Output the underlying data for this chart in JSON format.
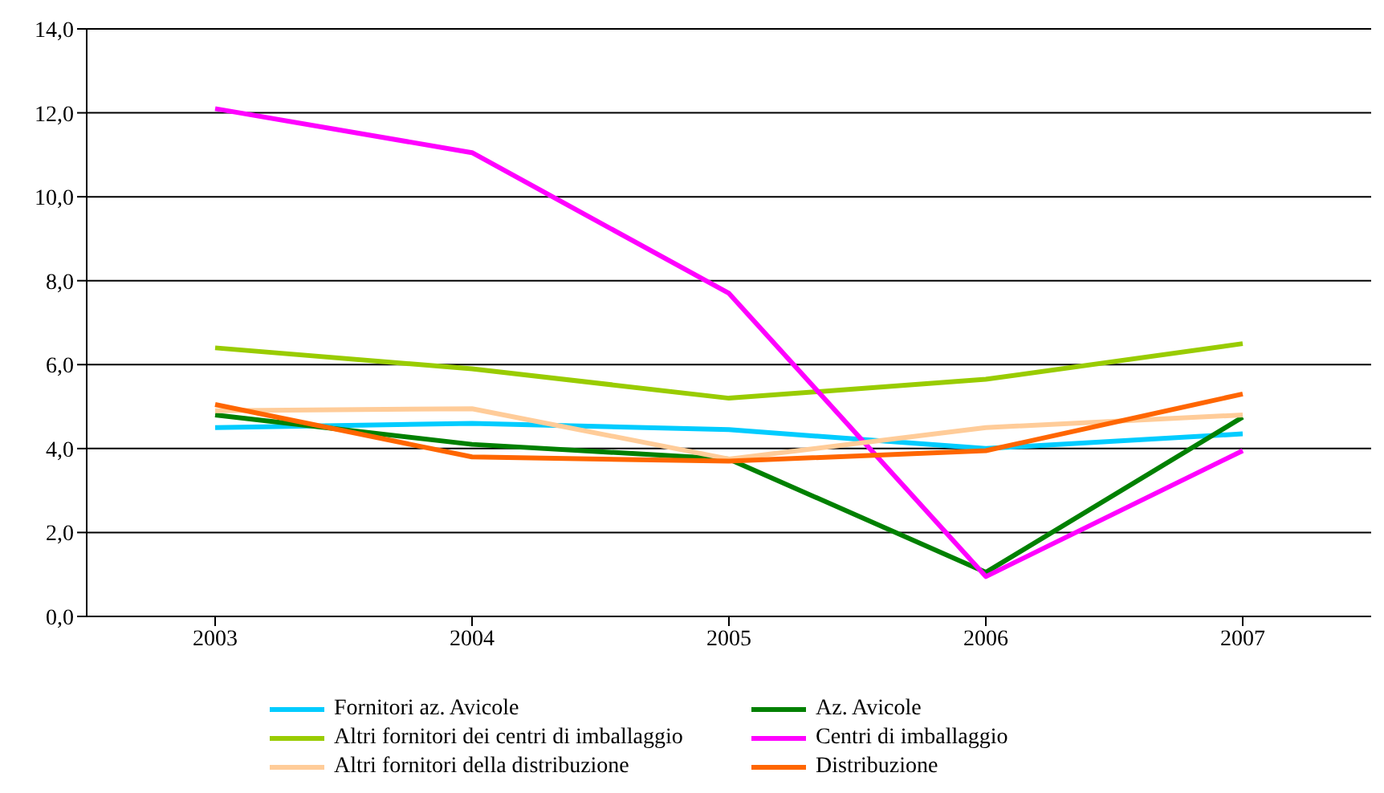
{
  "chart_data": {
    "type": "line",
    "categories": [
      "2003",
      "2004",
      "2005",
      "2006",
      "2007"
    ],
    "ylim": [
      0,
      14
    ],
    "yticks": [
      {
        "value": 0,
        "label": "0,0"
      },
      {
        "value": 2,
        "label": "2,0"
      },
      {
        "value": 4,
        "label": "4,0"
      },
      {
        "value": 6,
        "label": "6,0"
      },
      {
        "value": 8,
        "label": "8,0"
      },
      {
        "value": 10,
        "label": "10,0"
      },
      {
        "value": 12,
        "label": "12,0"
      },
      {
        "value": 14,
        "label": "14,0"
      }
    ],
    "grid": "y",
    "legend": "bottom",
    "marker": "none",
    "series": [
      {
        "name": "Fornitori az. Avicole",
        "color": "#00ccff",
        "values": [
          4.5,
          4.6,
          4.45,
          4.0,
          4.35
        ]
      },
      {
        "name": "Az. Avicole",
        "color": "#008000",
        "values": [
          4.8,
          4.1,
          3.75,
          1.05,
          4.75
        ]
      },
      {
        "name": "Altri fornitori dei centri di imballaggio",
        "color": "#99cc00",
        "values": [
          6.4,
          5.9,
          5.2,
          5.65,
          6.5
        ]
      },
      {
        "name": "Centri di imballaggio",
        "color": "#ff00ff",
        "values": [
          12.1,
          11.05,
          7.7,
          0.95,
          3.95
        ]
      },
      {
        "name": "Altri fornitori della distribuzione",
        "color": "#ffcc99",
        "values": [
          4.9,
          4.95,
          3.75,
          4.5,
          4.8
        ]
      },
      {
        "name": "Distribuzione",
        "color": "#ff6600",
        "values": [
          5.05,
          3.8,
          3.7,
          3.95,
          5.3
        ]
      }
    ]
  }
}
